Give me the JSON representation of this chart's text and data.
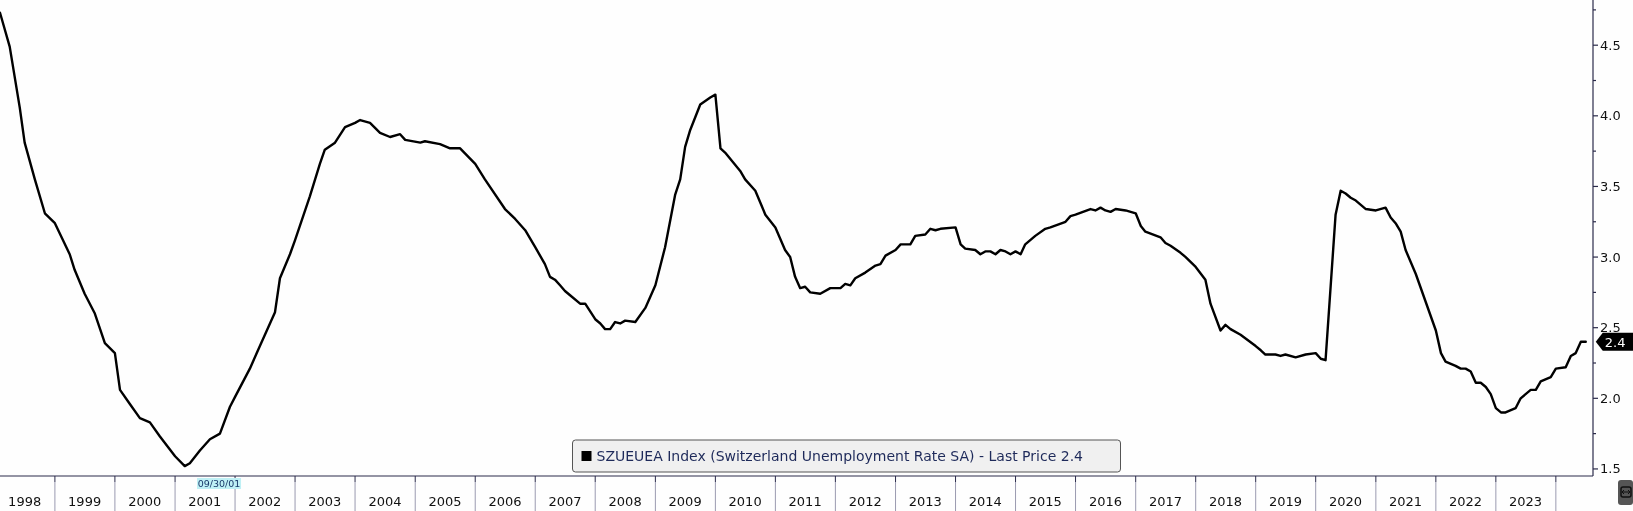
{
  "chart_data": {
    "type": "line",
    "xlim": [
      "1998-02-01",
      "2024-08-14"
    ],
    "ylim": [
      1.45,
      4.82
    ],
    "xticks": [
      {
        "value": "1998-07-01",
        "label": "1998"
      },
      {
        "value": "1999-07-01",
        "label": "1999"
      },
      {
        "value": "2000-07-01",
        "label": "2000"
      },
      {
        "value": "2001-07-01",
        "label": "2001"
      },
      {
        "value": "2002-07-01",
        "label": "2002"
      },
      {
        "value": "2003-07-01",
        "label": "2003"
      },
      {
        "value": "2004-07-01",
        "label": "2004"
      },
      {
        "value": "2005-07-01",
        "label": "2005"
      },
      {
        "value": "2006-07-01",
        "label": "2006"
      },
      {
        "value": "2007-07-01",
        "label": "2007"
      },
      {
        "value": "2008-07-01",
        "label": "2008"
      },
      {
        "value": "2009-07-01",
        "label": "2009"
      },
      {
        "value": "2010-07-01",
        "label": "2010"
      },
      {
        "value": "2011-07-01",
        "label": "2011"
      },
      {
        "value": "2012-07-01",
        "label": "2012"
      },
      {
        "value": "2013-07-01",
        "label": "2013"
      },
      {
        "value": "2014-07-01",
        "label": "2014"
      },
      {
        "value": "2015-07-01",
        "label": "2015"
      },
      {
        "value": "2016-07-01",
        "label": "2016"
      },
      {
        "value": "2017-07-01",
        "label": "2017"
      },
      {
        "value": "2018-07-01",
        "label": "2018"
      },
      {
        "value": "2019-07-01",
        "label": "2019"
      },
      {
        "value": "2020-07-01",
        "label": "2020"
      },
      {
        "value": "2021-07-01",
        "label": "2021"
      },
      {
        "value": "2022-07-01",
        "label": "2022"
      },
      {
        "value": "2023-07-01",
        "label": "2023"
      },
      {
        "value": "1999-01-01",
        "label": null
      },
      {
        "value": "2000-01-01",
        "label": null
      },
      {
        "value": "2001-01-01",
        "label": null
      },
      {
        "value": "2002-01-01",
        "label": null
      },
      {
        "value": "2003-01-01",
        "label": null
      },
      {
        "value": "2004-01-01",
        "label": null
      },
      {
        "value": "2005-01-01",
        "label": null
      },
      {
        "value": "2006-01-01",
        "label": null
      },
      {
        "value": "2007-01-01",
        "label": null
      },
      {
        "value": "2008-01-01",
        "label": null
      },
      {
        "value": "2009-01-01",
        "label": null
      },
      {
        "value": "2010-01-01",
        "label": null
      },
      {
        "value": "2011-01-01",
        "label": null
      },
      {
        "value": "2012-01-01",
        "label": null
      },
      {
        "value": "2013-01-01",
        "label": null
      },
      {
        "value": "2014-01-01",
        "label": null
      },
      {
        "value": "2015-01-01",
        "label": null
      },
      {
        "value": "2016-01-01",
        "label": null
      },
      {
        "value": "2017-01-01",
        "label": null
      },
      {
        "value": "2018-01-01",
        "label": null
      },
      {
        "value": "2019-01-01",
        "label": null
      },
      {
        "value": "2020-01-01",
        "label": null
      },
      {
        "value": "2021-01-01",
        "label": null
      },
      {
        "value": "2022-01-01",
        "label": null
      },
      {
        "value": "2023-01-01",
        "label": null
      },
      {
        "value": "2024-01-01",
        "label": null
      }
    ],
    "yticks": [
      {
        "value": 1.5,
        "label": "1.5"
      },
      {
        "value": 1.75,
        "label": null
      },
      {
        "value": 2,
        "label": "2.0"
      },
      {
        "value": 2.25,
        "label": null
      },
      {
        "value": 2.5,
        "label": "2.5"
      },
      {
        "value": 2.75,
        "label": null
      },
      {
        "value": 3,
        "label": "3.0"
      },
      {
        "value": 3.25,
        "label": null
      },
      {
        "value": 3.5,
        "label": "3.5"
      },
      {
        "value": 3.75,
        "label": null
      },
      {
        "value": 4,
        "label": "4.0"
      },
      {
        "value": 4.25,
        "label": null
      },
      {
        "value": 4.5,
        "label": "4.5"
      },
      {
        "value": 4.75,
        "label": null
      }
    ],
    "legend": "bottom",
    "annotations": [
      "09/30/01",
      {
        "text": "2.4",
        "x": "2024-07",
        "y": 2.4
      }
    ],
    "series": [
      {
        "name": "SZUEUEA Index (Switzerland Unemployment Rate SA) - Last Price 2.4",
        "color": "#000000",
        "x": [
          "1998-02",
          "1998-04",
          "1998-06",
          "1998-07",
          "1998-09",
          "1998-11",
          "1999-01",
          "1999-04",
          "1999-05",
          "1999-07",
          "1999-09",
          "1999-11",
          "2000-01",
          "2000-02",
          "2000-04",
          "2000-06",
          "2000-08",
          "2000-10",
          "2001-01",
          "2001-03",
          "2001-04",
          "2001-06",
          "2001-08",
          "2001-10",
          "2001-12",
          "2002-01",
          "2002-04",
          "2002-06",
          "2002-09",
          "2002-10",
          "2002-12",
          "2003-01",
          "2003-04",
          "2003-06",
          "2003-07",
          "2003-09",
          "2003-11",
          "2004-01",
          "2004-02",
          "2004-04",
          "2004-06",
          "2004-08",
          "2004-10",
          "2004-11",
          "2005-02",
          "2005-03",
          "2005-06",
          "2005-08",
          "2005-10",
          "2006-01",
          "2006-03",
          "2006-07",
          "2006-09",
          "2006-11",
          "2007-01",
          "2007-03",
          "2007-04",
          "2007-05",
          "2007-06",
          "2007-07",
          "2007-08",
          "2007-10",
          "2007-11",
          "2008-01",
          "2008-02",
          "2008-03",
          "2008-04",
          "2008-05",
          "2008-06",
          "2008-07",
          "2008-09",
          "2008-11",
          "2009-01",
          "2009-03",
          "2009-05",
          "2009-06",
          "2009-07",
          "2009-08",
          "2009-10",
          "2009-12",
          "2010-01",
          "2010-02",
          "2010-03",
          "2010-06",
          "2010-07",
          "2010-09",
          "2010-11",
          "2011-01",
          "2011-03",
          "2011-04",
          "2011-05",
          "2011-06",
          "2011-07",
          "2011-08",
          "2011-10",
          "2011-12",
          "2012-02",
          "2012-03",
          "2012-04",
          "2012-05",
          "2012-07",
          "2012-09",
          "2012-10",
          "2012-11",
          "2013-01",
          "2013-02",
          "2013-04",
          "2013-05",
          "2013-07",
          "2013-08",
          "2013-09",
          "2013-10",
          "2014-01",
          "2014-02",
          "2014-03",
          "2014-05",
          "2014-06",
          "2014-07",
          "2014-08",
          "2014-09",
          "2014-10",
          "2014-11",
          "2014-12",
          "2015-01",
          "2015-02",
          "2015-03",
          "2015-05",
          "2015-07",
          "2015-08",
          "2015-11",
          "2015-12",
          "2016-01",
          "2016-04",
          "2016-05",
          "2016-06",
          "2016-07",
          "2016-08",
          "2016-09",
          "2016-11",
          "2017-01",
          "2017-02",
          "2017-03",
          "2017-06",
          "2017-07",
          "2017-08",
          "2017-10",
          "2017-11",
          "2018-01",
          "2018-03",
          "2018-04",
          "2018-06",
          "2018-07",
          "2018-08",
          "2018-10",
          "2019-01",
          "2019-02",
          "2019-03",
          "2019-05",
          "2019-06",
          "2019-07",
          "2019-09",
          "2019-11",
          "2020-01",
          "2020-02",
          "2020-03",
          "2020-05",
          "2020-06",
          "2020-07",
          "2020-08",
          "2020-09",
          "2020-11",
          "2021-01",
          "2021-03",
          "2021-04",
          "2021-05",
          "2021-06",
          "2021-07",
          "2021-09",
          "2022-01",
          "2022-02",
          "2022-03",
          "2022-05",
          "2022-06",
          "2022-07",
          "2022-08",
          "2022-09",
          "2022-10",
          "2022-11",
          "2022-12",
          "2023-01",
          "2023-02",
          "2023-03",
          "2023-05",
          "2023-06",
          "2023-08",
          "2023-09",
          "2023-10",
          "2023-12",
          "2024-01",
          "2024-03",
          "2024-04",
          "2024-05",
          "2024-06",
          "2024-07"
        ],
        "values": [
          4.73,
          4.49,
          4.06,
          3.81,
          3.55,
          3.31,
          3.24,
          3.02,
          2.91,
          2.74,
          2.6,
          2.39,
          2.32,
          2.06,
          1.96,
          1.86,
          1.83,
          1.73,
          1.59,
          1.52,
          1.54,
          1.63,
          1.71,
          1.75,
          1.94,
          2.01,
          2.21,
          2.37,
          2.61,
          2.85,
          3.02,
          3.12,
          3.43,
          3.66,
          3.76,
          3.81,
          3.92,
          3.95,
          3.97,
          3.95,
          3.88,
          3.85,
          3.87,
          3.83,
          3.81,
          3.82,
          3.8,
          3.77,
          3.77,
          3.66,
          3.55,
          3.34,
          3.27,
          3.19,
          3.07,
          2.95,
          2.86,
          2.84,
          2.8,
          2.76,
          2.73,
          2.67,
          2.67,
          2.56,
          2.53,
          2.49,
          2.49,
          2.54,
          2.53,
          2.55,
          2.54,
          2.64,
          2.8,
          3.07,
          3.44,
          3.55,
          3.78,
          3.9,
          4.08,
          4.13,
          4.15,
          3.77,
          3.74,
          3.61,
          3.55,
          3.47,
          3.3,
          3.21,
          3.05,
          3.0,
          2.86,
          2.78,
          2.79,
          2.75,
          2.74,
          2.78,
          2.78,
          2.81,
          2.8,
          2.85,
          2.89,
          2.94,
          2.95,
          3.01,
          3.05,
          3.09,
          3.09,
          3.15,
          3.16,
          3.2,
          3.19,
          3.2,
          3.21,
          3.09,
          3.06,
          3.05,
          3.02,
          3.04,
          3.04,
          3.02,
          3.05,
          3.04,
          3.02,
          3.04,
          3.02,
          3.09,
          3.15,
          3.2,
          3.21,
          3.25,
          3.29,
          3.3,
          3.34,
          3.33,
          3.35,
          3.33,
          3.32,
          3.34,
          3.33,
          3.31,
          3.22,
          3.18,
          3.14,
          3.1,
          3.08,
          3.03,
          3.0,
          2.93,
          2.84,
          2.67,
          2.48,
          2.52,
          2.49,
          2.45,
          2.37,
          2.34,
          2.31,
          2.31,
          2.3,
          2.31,
          2.29,
          2.31,
          2.32,
          2.28,
          2.27,
          3.3,
          3.47,
          3.45,
          3.42,
          3.4,
          3.34,
          3.33,
          3.35,
          3.28,
          3.24,
          3.18,
          3.05,
          2.88,
          2.48,
          2.32,
          2.26,
          2.23,
          2.21,
          2.21,
          2.19,
          2.11,
          2.11,
          2.08,
          2.03,
          1.93,
          1.9,
          1.9,
          1.93,
          2.0,
          2.06,
          2.06,
          2.12,
          2.15,
          2.21,
          2.22,
          2.3,
          2.32,
          2.4,
          2.4
        ]
      }
    ]
  }
}
